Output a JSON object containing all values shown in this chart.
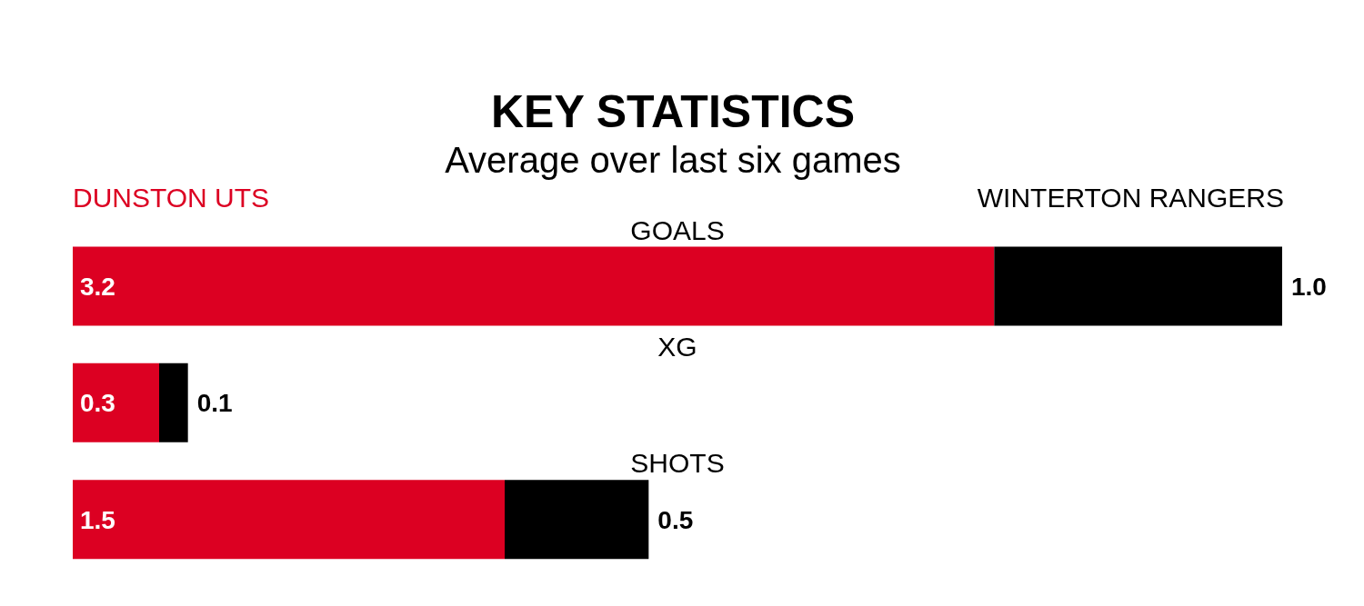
{
  "chart_data": {
    "type": "bar",
    "orientation": "horizontal",
    "stacked": true,
    "title": "KEY STATISTICS",
    "subtitle": "Average over last six games",
    "categories": [
      "GOALS",
      "XG",
      "SHOTS"
    ],
    "series": [
      {
        "name": "DUNSTON UTS",
        "color": "#dc0022",
        "values": [
          3.2,
          0.3,
          1.5
        ],
        "value_labels": [
          "3.2",
          "0.3",
          "1.5"
        ]
      },
      {
        "name": "WINTERTON RANGERS",
        "color": "#000000",
        "values": [
          1.0,
          0.1,
          0.5
        ],
        "value_labels": [
          "1.0",
          "0.1",
          "0.5"
        ]
      }
    ],
    "legend": "top",
    "grid": false,
    "tick_labels": false
  }
}
